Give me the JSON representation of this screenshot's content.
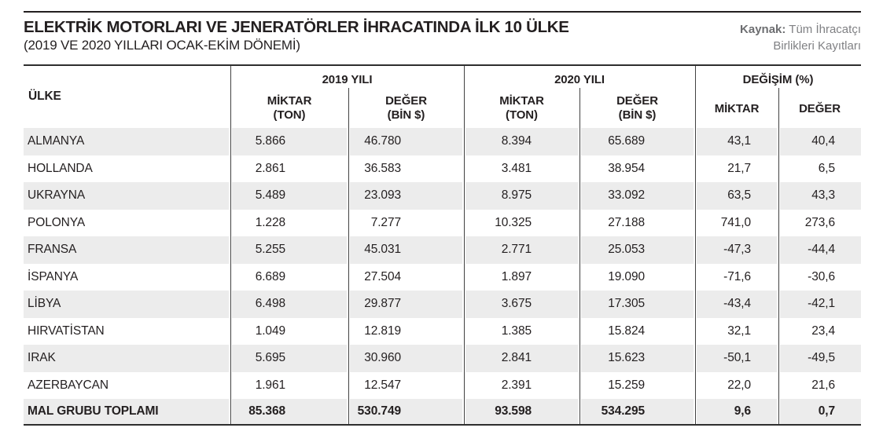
{
  "title": "ELEKTRİK MOTORLARI VE JENERATÖRLER İHRACATINDA İLK 10 ÜLKE",
  "subtitle": "(2019 VE 2020 YILLARI OCAK-EKİM DÖNEMİ)",
  "source": {
    "label": "Kaynak:",
    "line1": "Tüm İhracatçı",
    "line2": "Birlikleri Kayıtları"
  },
  "table": {
    "country_header": "ÜLKE",
    "groups": [
      {
        "label": "2019 YILI",
        "cols": [
          {
            "l1": "MİKTAR",
            "l2": "(TON)"
          },
          {
            "l1": "DEĞER",
            "l2": "(BİN $)"
          }
        ]
      },
      {
        "label": "2020 YILI",
        "cols": [
          {
            "l1": "MİKTAR",
            "l2": "(TON)"
          },
          {
            "l1": "DEĞER",
            "l2": "(BİN $)"
          }
        ]
      },
      {
        "label": "DEĞİŞİM (%)",
        "cols": [
          {
            "l1": "MİKTAR"
          },
          {
            "l1": "DEĞER"
          }
        ]
      }
    ],
    "rows": [
      {
        "country": "ALMANYA",
        "values": [
          "5.866",
          "46.780",
          "8.394",
          "65.689",
          "43,1",
          "40,4"
        ]
      },
      {
        "country": "HOLLANDA",
        "values": [
          "2.861",
          "36.583",
          "3.481",
          "38.954",
          "21,7",
          "6,5"
        ]
      },
      {
        "country": "UKRAYNA",
        "values": [
          "5.489",
          "23.093",
          "8.975",
          "33.092",
          "63,5",
          "43,3"
        ]
      },
      {
        "country": "POLONYA",
        "values": [
          "1.228",
          "7.277",
          "10.325",
          "27.188",
          "741,0",
          "273,6"
        ]
      },
      {
        "country": "FRANSA",
        "values": [
          "5.255",
          "45.031",
          "2.771",
          "25.053",
          "-47,3",
          "-44,4"
        ]
      },
      {
        "country": "İSPANYA",
        "values": [
          "6.689",
          "27.504",
          "1.897",
          "19.090",
          "-71,6",
          "-30,6"
        ]
      },
      {
        "country": "LİBYA",
        "values": [
          "6.498",
          "29.877",
          "3.675",
          "17.305",
          "-43,4",
          "-42,1"
        ]
      },
      {
        "country": "HIRVATİSTAN",
        "values": [
          "1.049",
          "12.819",
          "1.385",
          "15.824",
          "32,1",
          "23,4"
        ]
      },
      {
        "country": "IRAK",
        "values": [
          "5.695",
          "30.960",
          "2.841",
          "15.623",
          "-50,1",
          "-49,5"
        ]
      },
      {
        "country": "AZERBAYCAN",
        "values": [
          "1.961",
          "12.547",
          "2.391",
          "15.259",
          "22,0",
          "21,6"
        ]
      }
    ],
    "total": {
      "country": "MAL GRUBU TOPLAMI",
      "values": [
        "85.368",
        "530.749",
        "93.598",
        "534.295",
        "9,6",
        "0,7"
      ]
    }
  },
  "chart_data": {
    "type": "table",
    "title": "ELEKTRİK MOTORLARI VE JENERATÖRLER İHRACATINDA İLK 10 ÜLKE",
    "subtitle": "(2019 VE 2020 YILLARI OCAK-EKİM DÖNEMİ)",
    "source": "Kaynak: Tüm İhracatçı Birlikleri Kayıtları",
    "columns": [
      "ÜLKE",
      "2019 MİKTAR (TON)",
      "2019 DEĞER (BİN $)",
      "2020 MİKTAR (TON)",
      "2020 DEĞER (BİN $)",
      "DEĞİŞİM MİKTAR (%)",
      "DEĞİŞİM DEĞER (%)"
    ],
    "rows": [
      [
        "ALMANYA",
        5866,
        46780,
        8394,
        65689,
        43.1,
        40.4
      ],
      [
        "HOLLANDA",
        2861,
        36583,
        3481,
        38954,
        21.7,
        6.5
      ],
      [
        "UKRAYNA",
        5489,
        23093,
        8975,
        33092,
        63.5,
        43.3
      ],
      [
        "POLONYA",
        1228,
        7277,
        10325,
        27188,
        741.0,
        273.6
      ],
      [
        "FRANSA",
        5255,
        45031,
        2771,
        25053,
        -47.3,
        -44.4
      ],
      [
        "İSPANYA",
        6689,
        27504,
        1897,
        19090,
        -71.6,
        -30.6
      ],
      [
        "LİBYA",
        6498,
        29877,
        3675,
        17305,
        -43.4,
        -42.1
      ],
      [
        "HIRVATİSTAN",
        1049,
        12819,
        1385,
        15824,
        32.1,
        23.4
      ],
      [
        "IRAK",
        5695,
        30960,
        2841,
        15623,
        -50.1,
        -49.5
      ],
      [
        "AZERBAYCAN",
        1961,
        12547,
        2391,
        15259,
        22.0,
        21.6
      ]
    ],
    "total_row": [
      "MAL GRUBU TOPLAMI",
      85368,
      530749,
      93598,
      534295,
      9.6,
      0.7
    ]
  }
}
